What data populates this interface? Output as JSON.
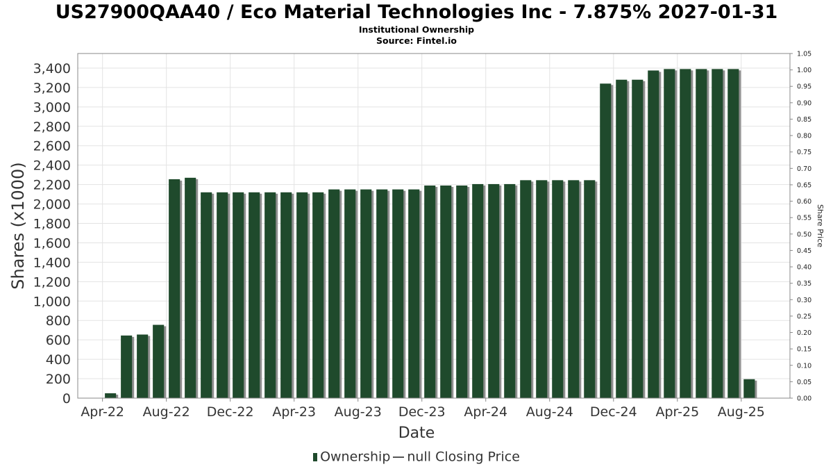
{
  "header": {
    "title": "US27900QAA40 / Eco Material Technologies Inc - 7.875% 2027-01-31",
    "subtitle1": "Institutional Ownership",
    "subtitle2": "Source: Fintel.io"
  },
  "legend": {
    "ownership_label": "Ownership",
    "price_label": "null Closing Price"
  },
  "colors": {
    "bar": "#1f4a2c",
    "bar_shadow": "#8f8f8f",
    "grid": "#e3e3e3",
    "axis": "#888888"
  },
  "chart_data": {
    "type": "bar",
    "xlabel": "Date",
    "ylabel": "Shares (x1000)",
    "y2label": "Share Price",
    "ylim": [
      0,
      3550
    ],
    "yticks": [
      0,
      200,
      400,
      600,
      800,
      1000,
      1200,
      1400,
      1600,
      1800,
      2000,
      2200,
      2400,
      2600,
      2800,
      3000,
      3200,
      3400
    ],
    "y2lim": [
      0,
      1.05
    ],
    "y2ticks": [
      "0.00",
      "0.05",
      "0.10",
      "0.15",
      "0.20",
      "0.25",
      "0.30",
      "0.35",
      "0.40",
      "0.45",
      "0.50",
      "0.55",
      "0.60",
      "0.65",
      "0.70",
      "0.75",
      "0.80",
      "0.85",
      "0.90",
      "0.95",
      "1.00",
      "1.05"
    ],
    "x_tick_labels": [
      "Apr-22",
      "Aug-22",
      "Dec-22",
      "Apr-23",
      "Aug-23",
      "Dec-23",
      "Apr-24",
      "Aug-24",
      "Dec-24",
      "Apr-25",
      "Aug-25"
    ],
    "grid": true,
    "legend_position": "bottom",
    "series": [
      {
        "name": "Ownership",
        "values": [
          50,
          645,
          655,
          755,
          2255,
          2270,
          2120,
          2120,
          2120,
          2120,
          2120,
          2120,
          2120,
          2120,
          2150,
          2150,
          2150,
          2150,
          2150,
          2150,
          2190,
          2190,
          2190,
          2205,
          2205,
          2205,
          2245,
          2245,
          2245,
          2245,
          2245,
          3240,
          3280,
          3280,
          3375,
          3390,
          3390,
          3390,
          3390,
          3390,
          195
        ]
      }
    ]
  }
}
